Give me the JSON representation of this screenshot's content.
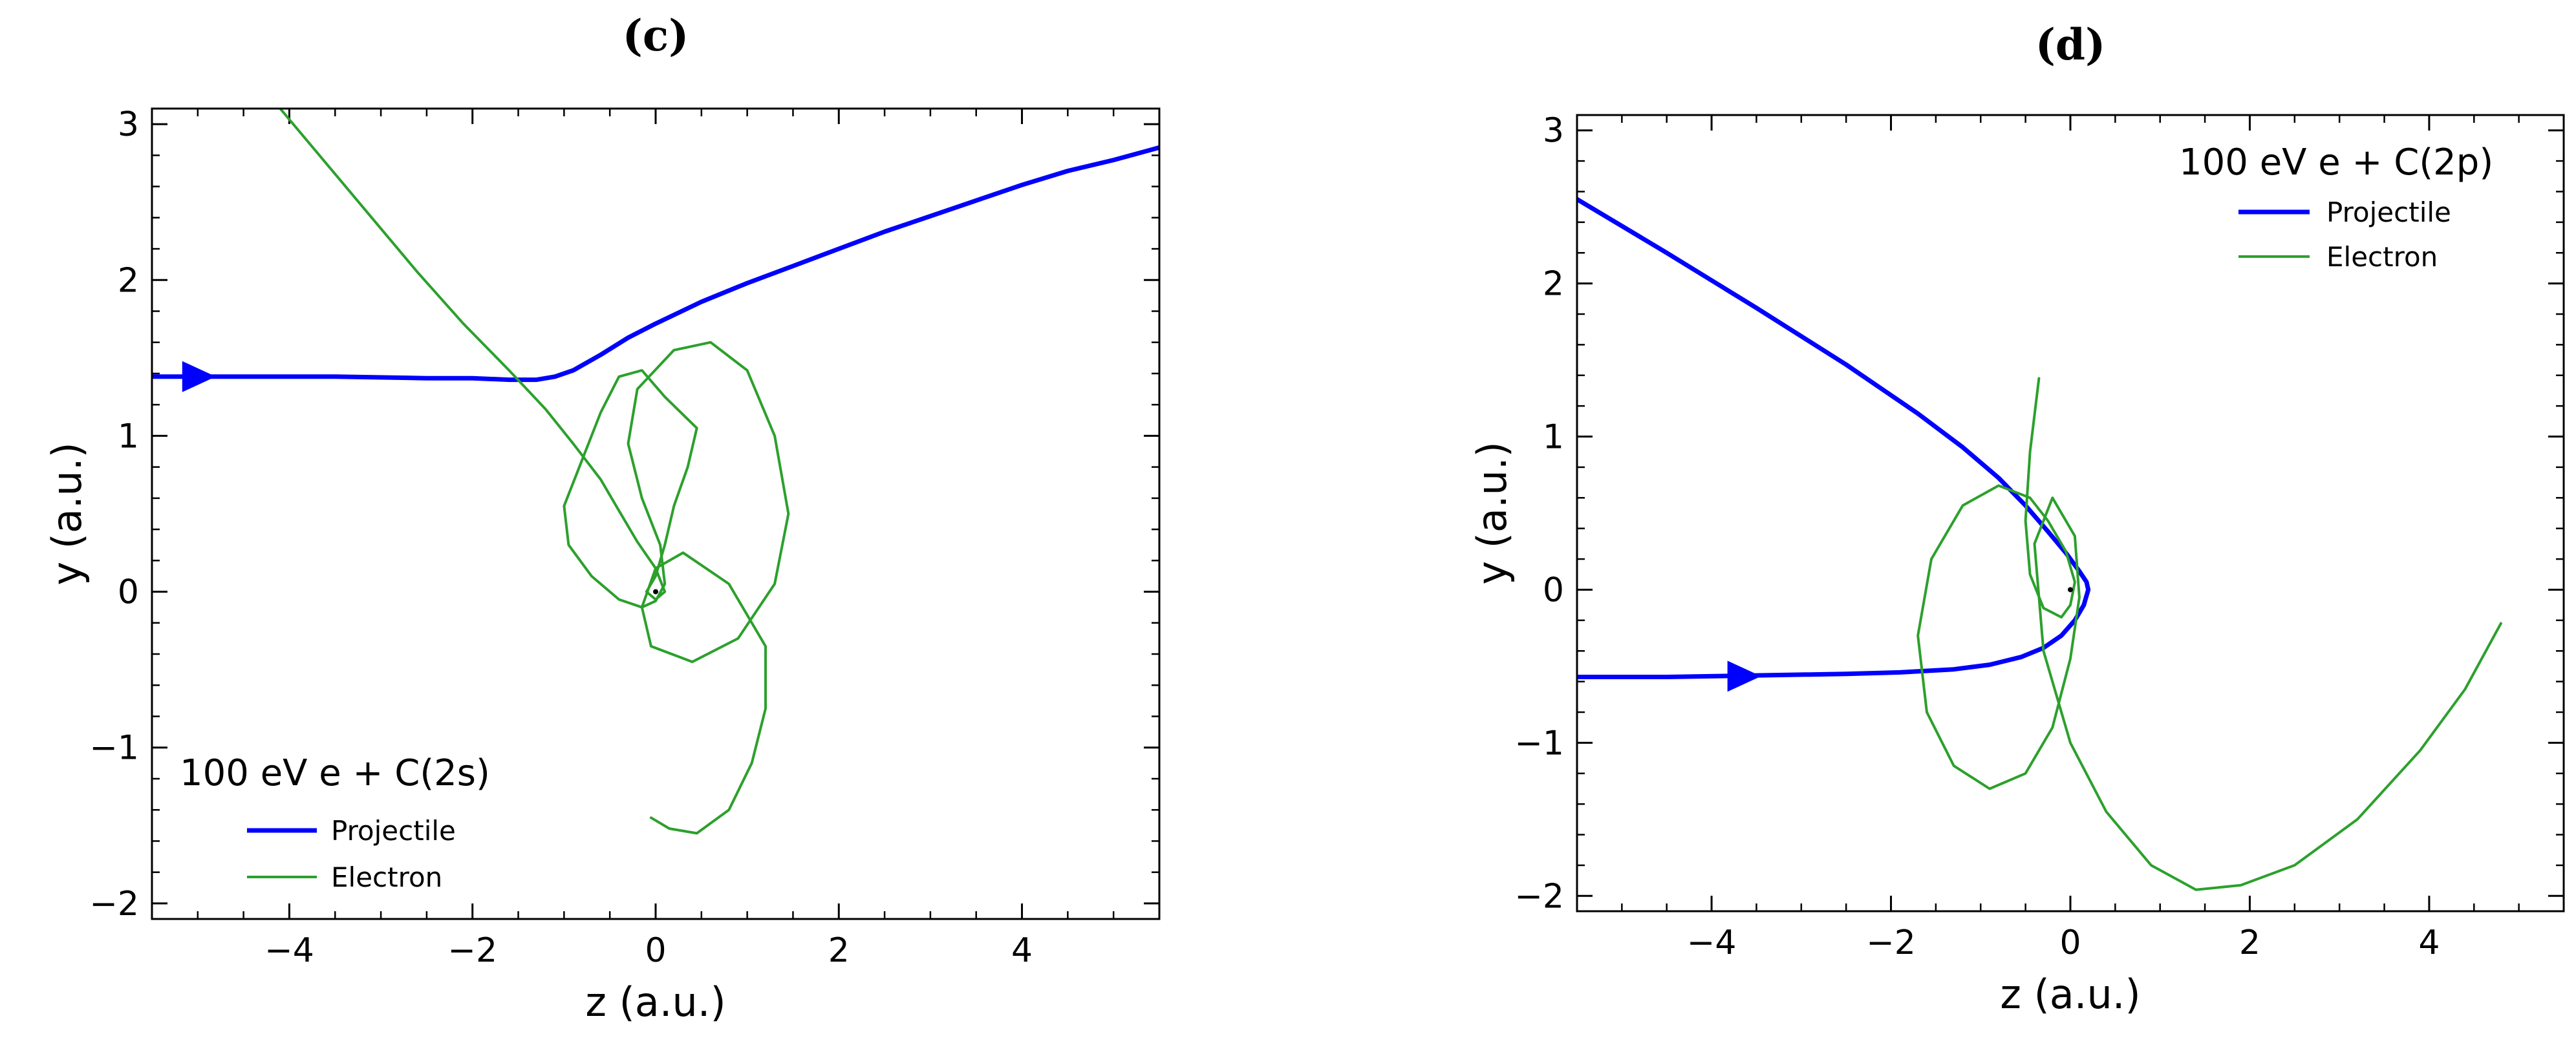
{
  "chart_data": [
    {
      "type": "line",
      "panel_label": "(c)",
      "xlabel": "z (a.u.)",
      "ylabel": "y (a.u.)",
      "xlim": [
        -5.5,
        5.5
      ],
      "ylim": [
        -2.1,
        3.1
      ],
      "xticks": [
        -4,
        -2,
        0,
        2,
        4
      ],
      "yticks": [
        -2,
        -1,
        0,
        1,
        2,
        3
      ],
      "xtick_labels": [
        "−4",
        "−2",
        "0",
        "2",
        "4"
      ],
      "ytick_labels": [
        "−2",
        "−1",
        "0",
        "1",
        "2",
        "3"
      ],
      "legend": {
        "title": "100 eV e + C(2s)",
        "placement": "lower-left"
      },
      "series": [
        {
          "name": "Projectile",
          "color": "#0000ff",
          "x": [
            -5.5,
            -4.5,
            -3.5,
            -2.5,
            -2.0,
            -1.6,
            -1.3,
            -1.1,
            -0.9,
            -0.6,
            -0.3,
            0.0,
            0.5,
            1.0,
            1.5,
            2.0,
            2.5,
            3.0,
            3.5,
            4.0,
            4.5,
            5.0,
            5.5
          ],
          "y": [
            1.38,
            1.38,
            1.38,
            1.37,
            1.37,
            1.36,
            1.36,
            1.38,
            1.42,
            1.52,
            1.63,
            1.72,
            1.86,
            1.98,
            2.09,
            2.2,
            2.31,
            2.41,
            2.51,
            2.61,
            2.7,
            2.77,
            2.85
          ]
        },
        {
          "name": "Electron",
          "color": "#2ca02c",
          "x": [
            -4.1,
            -3.6,
            -3.1,
            -2.6,
            -2.1,
            -1.6,
            -1.2,
            -0.9,
            -0.6,
            -0.4,
            -0.2,
            0.0,
            0.1,
            0.0,
            -0.1,
            0.0,
            0.1,
            0.2,
            0.35,
            0.45,
            0.1,
            -0.15,
            -0.4,
            -0.6,
            -0.8,
            -1.0,
            -0.95,
            -0.7,
            -0.4,
            -0.15,
            0.0,
            0.1,
            0.05,
            -0.15,
            -0.3,
            -0.2,
            0.2,
            0.6,
            1.0,
            1.3,
            1.45,
            1.3,
            0.9,
            0.4,
            -0.05,
            -0.15,
            0.0,
            0.3,
            0.8,
            1.2,
            1.2,
            1.05,
            0.8,
            0.45,
            0.15,
            -0.05
          ],
          "y": [
            3.1,
            2.75,
            2.4,
            2.05,
            1.72,
            1.42,
            1.17,
            0.95,
            0.72,
            0.52,
            0.32,
            0.15,
            0.0,
            -0.05,
            0.0,
            0.1,
            0.3,
            0.55,
            0.8,
            1.05,
            1.25,
            1.42,
            1.38,
            1.15,
            0.85,
            0.55,
            0.3,
            0.1,
            -0.05,
            -0.1,
            -0.06,
            0.05,
            0.3,
            0.6,
            0.95,
            1.3,
            1.55,
            1.6,
            1.42,
            1.0,
            0.5,
            0.05,
            -0.3,
            -0.45,
            -0.35,
            -0.1,
            0.15,
            0.25,
            0.05,
            -0.35,
            -0.75,
            -1.1,
            -1.4,
            -1.55,
            -1.52,
            -1.45
          ]
        }
      ]
    },
    {
      "type": "line",
      "panel_label": "(d)",
      "xlabel": "z (a.u.)",
      "ylabel": "y (a.u.)",
      "xlim": [
        -5.5,
        5.5
      ],
      "ylim": [
        -2.1,
        3.1
      ],
      "xticks": [
        -4,
        -2,
        0,
        2,
        4
      ],
      "yticks": [
        -2,
        -1,
        0,
        1,
        2,
        3
      ],
      "xtick_labels": [
        "−4",
        "−2",
        "0",
        "2",
        "4"
      ],
      "ytick_labels": [
        "−2",
        "−1",
        "0",
        "1",
        "2",
        "3"
      ],
      "legend": {
        "title": "100 eV e + C(2p)",
        "placement": "upper-right"
      },
      "series": [
        {
          "name": "Projectile",
          "color": "#0000ff",
          "x": [
            -5.5,
            -4.5,
            -3.5,
            -2.5,
            -1.7,
            -1.2,
            -0.8,
            -0.5,
            -0.25,
            -0.05,
            0.1,
            0.18,
            0.2,
            0.15,
            0.05,
            -0.1,
            -0.3,
            -0.55,
            -0.9,
            -1.3,
            -1.9,
            -2.5,
            -3.5,
            -4.5,
            -5.5
          ],
          "y": [
            2.55,
            2.2,
            1.84,
            1.47,
            1.15,
            0.93,
            0.73,
            0.55,
            0.38,
            0.24,
            0.12,
            0.05,
            0.0,
            -0.1,
            -0.2,
            -0.3,
            -0.38,
            -0.44,
            -0.49,
            -0.52,
            -0.54,
            -0.55,
            -0.56,
            -0.57,
            -0.57
          ]
        },
        {
          "name": "Electron",
          "color": "#2ca02c",
          "x": [
            -0.35,
            -0.45,
            -0.5,
            -0.45,
            -0.3,
            -0.1,
            0.0,
            0.05,
            -0.05,
            -0.25,
            -0.45,
            -0.8,
            -1.2,
            -1.55,
            -1.7,
            -1.6,
            -1.3,
            -0.9,
            -0.5,
            -0.2,
            0.0,
            0.1,
            0.05,
            -0.2,
            -0.4,
            -0.3,
            0.0,
            0.4,
            0.9,
            1.4,
            1.9,
            2.5,
            3.2,
            3.9,
            4.4,
            4.8
          ],
          "y": [
            1.38,
            0.9,
            0.45,
            0.1,
            -0.12,
            -0.18,
            -0.1,
            0.05,
            0.25,
            0.45,
            0.6,
            0.68,
            0.55,
            0.2,
            -0.3,
            -0.8,
            -1.15,
            -1.3,
            -1.2,
            -0.9,
            -0.45,
            -0.05,
            0.35,
            0.6,
            0.3,
            -0.4,
            -1.0,
            -1.45,
            -1.8,
            -1.96,
            -1.93,
            -1.8,
            -1.5,
            -1.05,
            -0.65,
            -0.22
          ]
        }
      ]
    }
  ]
}
